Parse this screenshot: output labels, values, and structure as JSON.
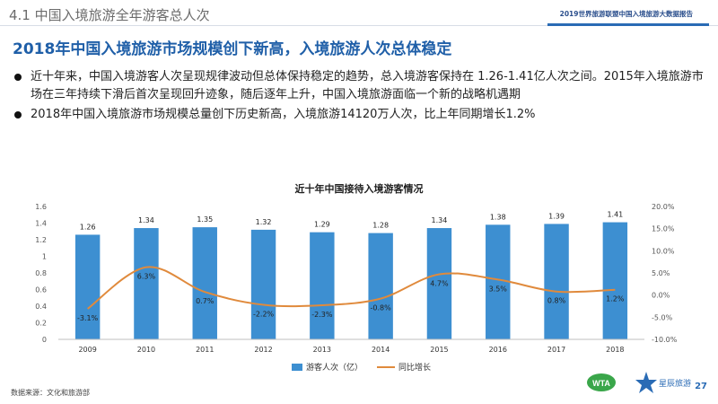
{
  "header": {
    "section_title": "4.1 中国入境旅游全年游客总人次",
    "report_title": "2019世界旅游联盟中国入境旅游大数据报告"
  },
  "headline": "2018年中国入境旅游市场规模创下新高，入境旅游人次总体稳定",
  "bullets": [
    "近十年来，中国入境游客人次呈现规律波动但总体保持稳定的趋势，总入境游客保持在 1.26-1.41亿人次之间。2015年入境旅游市场在三年持续下滑后首次呈现回升迹象，随后逐年上升，中国入境旅游面临一个新的战略机遇期",
    "2018年中国入境旅游市场规模总量创下历史新高，入境旅游14120万人次，比上年同期增长1.2%"
  ],
  "chart_data": {
    "type": "bar+line",
    "title": "近十年中国接待入境游客情况",
    "categories": [
      "2009",
      "2010",
      "2011",
      "2012",
      "2013",
      "2014",
      "2015",
      "2016",
      "2017",
      "2018"
    ],
    "series": [
      {
        "name": "游客人次（亿）",
        "type": "bar",
        "axis": "left",
        "values": [
          1.26,
          1.34,
          1.35,
          1.32,
          1.29,
          1.28,
          1.34,
          1.38,
          1.39,
          1.41
        ],
        "labels": [
          "1.26",
          "1.34",
          "1.35",
          "1.32",
          "1.29",
          "1.28",
          "1.34",
          "1.38",
          "1.39",
          "1.41"
        ]
      },
      {
        "name": "同比增长",
        "type": "line",
        "axis": "right",
        "values": [
          -3.1,
          6.3,
          0.7,
          -2.2,
          -2.3,
          -0.8,
          4.7,
          3.5,
          0.8,
          1.2
        ],
        "labels": [
          "-3.1%",
          "6.3%",
          "0.7%",
          "-2.2%",
          "-2.3%",
          "-0.8%",
          "4.7%",
          "3.5%",
          "0.8%",
          "1.2%"
        ]
      }
    ],
    "y_left": {
      "min": 0,
      "max": 1.6,
      "ticks": [
        "0",
        "0.2",
        "0.4",
        "0.6",
        "0.8",
        "1",
        "1.2",
        "1.4",
        "1.6"
      ]
    },
    "y_right": {
      "min": -10,
      "max": 20,
      "ticks": [
        "-10.0%",
        "-5.0%",
        "0.0%",
        "5.0%",
        "10.0%",
        "15.0%",
        "20.0%"
      ]
    },
    "grid": false,
    "legend": "bottom",
    "colors": {
      "bar": "#3d8fd1",
      "line": "#e08a3c"
    }
  },
  "footer": {
    "source": "数据来源：文化和旅游部",
    "page": "27",
    "logo1_text": "WTA",
    "logo2_text": "星辰旅游"
  }
}
